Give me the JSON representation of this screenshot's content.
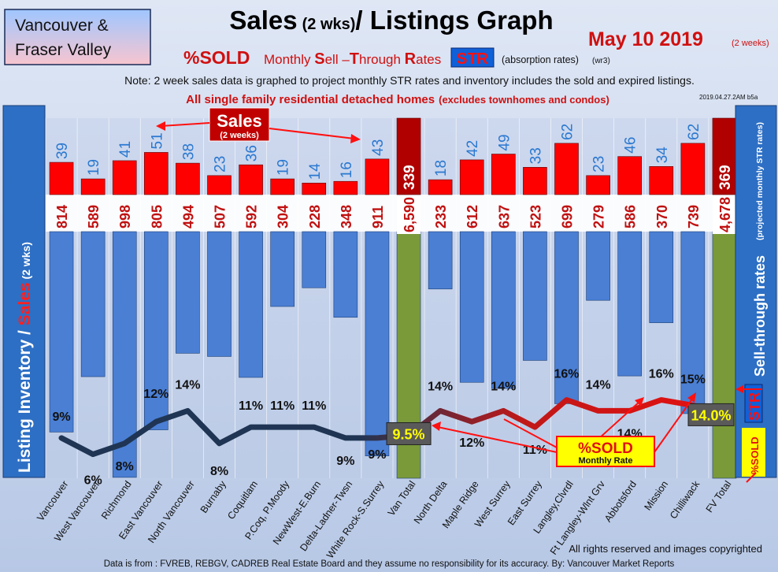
{
  "header": {
    "region_box": [
      "Vancouver &",
      "Fraser Valley"
    ],
    "title_main": "Sales",
    "title_small": "(2 wks)",
    "title_rest": "/ Listings Graph",
    "date": "May 10 2019",
    "date_note": "(2 weeks)",
    "sold_word": "%SOLD",
    "subtitle_pre": "Monthly ",
    "subtitle_s": "S",
    "subtitle_ell": "ell –",
    "subtitle_t": "T",
    "subtitle_hrough": "hrough ",
    "subtitle_r": "R",
    "subtitle_ates": "ates",
    "str_badge": "STR",
    "absorption": "(absorption rates)",
    "absorption_code": "(wr3)",
    "note": "Note: 2 week sales data is graphed to project monthly STR rates and inventory includes the sold and expired listings.",
    "scope_bold": "All single family residential detached homes",
    "scope_paren": "(excludes townhomes and condos)",
    "stamp": "2019.04.27.2AM b5a"
  },
  "left_panel": {
    "text_inventory": "Listing Inventory / ",
    "text_sales": "Sales",
    "text_2wks": " (2 wks)"
  },
  "right_panel": {
    "rates": "Sell-through rates",
    "projected": "(projected monthly STR rates)",
    "str": "STR",
    "sold": "%SOLD"
  },
  "callouts": {
    "sales_title": "Sales",
    "sales_sub": "(2 weeks)",
    "sold_title": "%SOLD",
    "sold_sub": "Monthly Rate"
  },
  "footer": {
    "rights": "All rights reserved and  images copyrighted",
    "source": "Data is from : FVREB, REBGV, CADREB Real Estate Board and they assume no responsibility for its accuracy. By: Vancouver Market Reports"
  },
  "colors": {
    "sales_bar": "#ff0000",
    "total_sales_bar": "#b00000",
    "listing_bar": "#4a7fd4",
    "total_listing_bar": "#7a9a3a",
    "line_low": "#1f3553",
    "line_high": "#e41010",
    "title_red": "#d01010"
  },
  "chart_data": {
    "type": "bar",
    "categories": [
      "Vancouver",
      "West Vancouver",
      "Richmond",
      "East Vancouver",
      "North Vancouver",
      "Burnaby",
      "Coquitlam",
      "P.Coq, P.Moody",
      "NewWest-E.Burn",
      "Delta-Ladner-Twsn",
      "White Rock-S.Surrey",
      "Van Total",
      "North Delta",
      "Maple Ridge",
      "West Surrey",
      "East Surrey",
      "Langley,Clvrdl",
      "Ft Langley-Wlnt Grv",
      "Abbotsford",
      "Mission",
      "Chilliwack",
      "FV Total"
    ],
    "sales_labels": [
      "39",
      "19",
      "41",
      "51",
      "38",
      "23",
      "36",
      "19",
      "14",
      "16",
      "43",
      "339",
      "18",
      "42",
      "49",
      "33",
      "62",
      "23",
      "46",
      "34",
      "62",
      "369"
    ],
    "listing_labels": [
      "814",
      "589",
      "998",
      "805",
      "494",
      "507",
      "592",
      "304",
      "228",
      "348",
      "911",
      "6,590",
      "233",
      "612",
      "637",
      "523",
      "699",
      "279",
      "586",
      "370",
      "739",
      "4,678"
    ],
    "sold_labels": [
      "9%",
      "6%",
      "8%",
      "12%",
      "14%",
      "8%",
      "11%",
      "11%",
      "11%",
      "9%",
      "9%",
      "9.5%",
      "14%",
      "12%",
      "14%",
      "11%",
      "16%",
      "14%",
      "14%",
      "16%",
      "15%",
      "14.0%"
    ],
    "series": [
      {
        "values": [
          39,
          19,
          41,
          51,
          38,
          23,
          36,
          19,
          14,
          16,
          43,
          339,
          18,
          42,
          49,
          33,
          62,
          23,
          46,
          34,
          62,
          369
        ]
      },
      {
        "values": [
          814,
          589,
          998,
          805,
          494,
          507,
          592,
          304,
          228,
          348,
          911,
          6590,
          233,
          612,
          637,
          523,
          699,
          279,
          586,
          370,
          739,
          4678
        ]
      },
      {
        "values": [
          9,
          6,
          8,
          12,
          14,
          8,
          11,
          11,
          11,
          9,
          9,
          9.5,
          14,
          12,
          14,
          11,
          16,
          14,
          14,
          16,
          15,
          14.0
        ]
      }
    ]
  }
}
